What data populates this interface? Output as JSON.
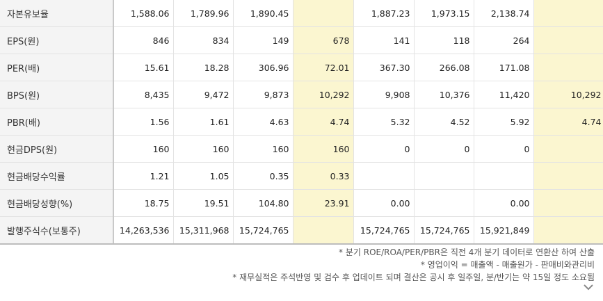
{
  "rows": [
    {
      "label": "자본유보율",
      "cells": [
        "1,588.06",
        "1,789.96",
        "1,890.45",
        "",
        "1,887.23",
        "1,973.15",
        "2,138.74",
        ""
      ]
    },
    {
      "label": "EPS(원)",
      "cells": [
        "846",
        "834",
        "149",
        "678",
        "141",
        "118",
        "264",
        ""
      ]
    },
    {
      "label": "PER(배)",
      "cells": [
        "15.61",
        "18.28",
        "306.96",
        "72.01",
        "367.30",
        "266.08",
        "171.08",
        ""
      ]
    },
    {
      "label": "BPS(원)",
      "cells": [
        "8,435",
        "9,472",
        "9,873",
        "10,292",
        "9,908",
        "10,376",
        "11,420",
        "10,292"
      ]
    },
    {
      "label": "PBR(배)",
      "cells": [
        "1.56",
        "1.61",
        "4.63",
        "4.74",
        "5.32",
        "4.52",
        "5.92",
        "4.74"
      ]
    },
    {
      "label": "현금DPS(원)",
      "cells": [
        "160",
        "160",
        "160",
        "160",
        "0",
        "0",
        "0",
        ""
      ]
    },
    {
      "label": "현금배당수익률",
      "cells": [
        "1.21",
        "1.05",
        "0.35",
        "0.33",
        "",
        "",
        "",
        ""
      ]
    },
    {
      "label": "현금배당성향(%)",
      "cells": [
        "18.75",
        "19.51",
        "104.80",
        "23.91",
        "0.00",
        "",
        "0.00",
        ""
      ]
    },
    {
      "label": "발행주식수(보통주)",
      "cells": [
        "14,263,536",
        "15,311,968",
        "15,724,765",
        "",
        "15,724,765",
        "15,724,765",
        "15,921,849",
        ""
      ]
    }
  ],
  "notes": [
    "* 분기 ROE/ROA/PER/PBR은 직전 4개 분기 데이터로 연환산 하여 산출",
    "* 영업이익 = 매출액 - 매출원가 - 판매비와관리비",
    "* 재무실적은 주석반영 및 검수 후 업데이트 되며 결산은 공시 후 일주일, 분/반기는 약 15일 정도 소요됨"
  ],
  "colors": {
    "highlight": "#fbf6d0",
    "label_bg": "#f4f4f4",
    "grid": "#e3e3e3"
  },
  "icons": {
    "expand": "chevron-down-icon"
  }
}
